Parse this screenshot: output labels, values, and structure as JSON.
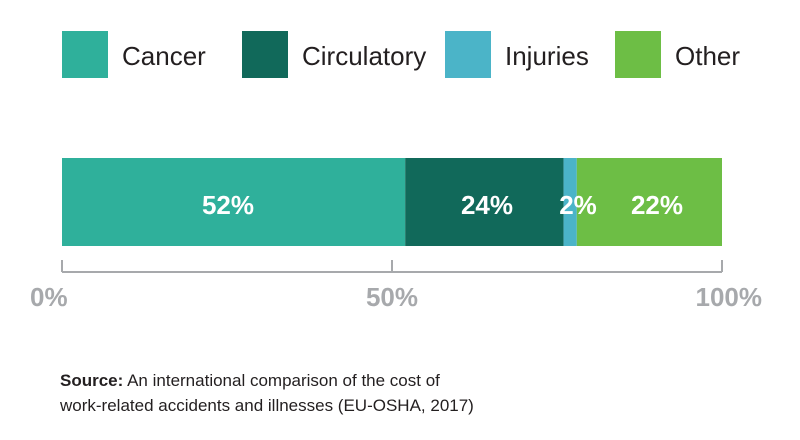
{
  "chart_data": {
    "type": "bar",
    "orientation": "horizontal-stacked",
    "categories": [
      ""
    ],
    "series": [
      {
        "name": "Cancer",
        "values": [
          52
        ],
        "label": "52%",
        "color": "#2fb09b"
      },
      {
        "name": "Circulatory",
        "values": [
          24
        ],
        "label": "24%",
        "color": "#11695a"
      },
      {
        "name": "Injuries",
        "values": [
          2
        ],
        "label": "2%",
        "color": "#4bb4c8"
      },
      {
        "name": "Other",
        "values": [
          22
        ],
        "label": "22%",
        "color": "#6dbe45"
      }
    ],
    "xlim": [
      0,
      100
    ],
    "xticks": [
      0,
      50,
      100
    ],
    "xtick_labels": [
      "0%",
      "50%",
      "100%"
    ],
    "legend": "top",
    "grid": false,
    "title": "",
    "xlabel": "",
    "ylabel": ""
  },
  "source": {
    "lead": "Source:",
    "line1": "An international comparison of the cost of",
    "line2": "work-related accidents and illnesses (EU-OSHA, 2017)"
  }
}
